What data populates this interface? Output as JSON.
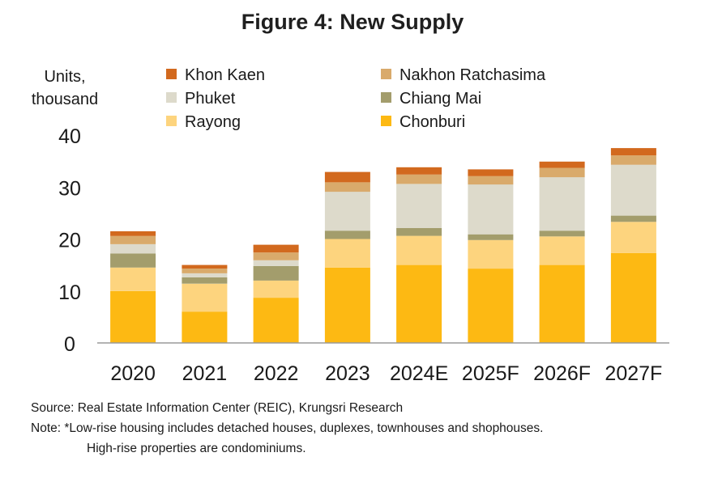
{
  "chart_data": {
    "type": "bar",
    "stacked": true,
    "title": "Figure 4: New Supply",
    "ylabel": [
      "Units,",
      "thousand"
    ],
    "xlabel": "",
    "ylim": [
      0,
      40
    ],
    "yticks": [
      "0",
      "10",
      "20",
      "30",
      "40"
    ],
    "ytick_values": [
      0,
      10,
      20,
      30,
      40
    ],
    "grid": false,
    "legend_position": "top",
    "categories": [
      "2020",
      "2021",
      "2022",
      "2023",
      "2024E",
      "2025F",
      "2026F",
      "2027F"
    ],
    "series": [
      {
        "name": "Chonburi",
        "color": "#fdb913",
        "values": [
          10.0,
          6.0,
          8.7,
          14.5,
          15.0,
          14.3,
          15.0,
          17.3
        ]
      },
      {
        "name": "Rayong",
        "color": "#fdd47e",
        "values": [
          4.5,
          5.4,
          3.3,
          5.5,
          5.6,
          5.5,
          5.5,
          6.0
        ]
      },
      {
        "name": "Chiang Mai",
        "color": "#a39d6c",
        "values": [
          2.7,
          1.2,
          2.8,
          1.6,
          1.5,
          1.1,
          1.1,
          1.2
        ]
      },
      {
        "name": "Phuket",
        "color": "#dddacb",
        "values": [
          1.8,
          0.8,
          1.1,
          7.5,
          8.5,
          9.6,
          10.3,
          9.8
        ]
      },
      {
        "name": "Nakhon Ratchasima",
        "color": "#d9aa6b",
        "values": [
          1.6,
          0.9,
          1.5,
          1.8,
          1.8,
          1.6,
          1.8,
          1.8
        ]
      },
      {
        "name": "Khon Kaen",
        "color": "#d2691e",
        "values": [
          0.9,
          0.7,
          1.5,
          2.0,
          1.4,
          1.3,
          1.2,
          1.4
        ]
      }
    ],
    "legend_order": [
      "Khon Kaen",
      "Nakhon Ratchasima",
      "Phuket",
      "Chiang Mai",
      "Rayong",
      "Chonburi"
    ]
  },
  "notes": {
    "source": "Source: Real Estate Information Center (REIC), Krungsri Research",
    "footnote_line1": "Note: *Low-rise housing includes detached houses, duplexes, townhouses and shophouses.",
    "footnote_line2": "High-rise properties are condominiums."
  }
}
